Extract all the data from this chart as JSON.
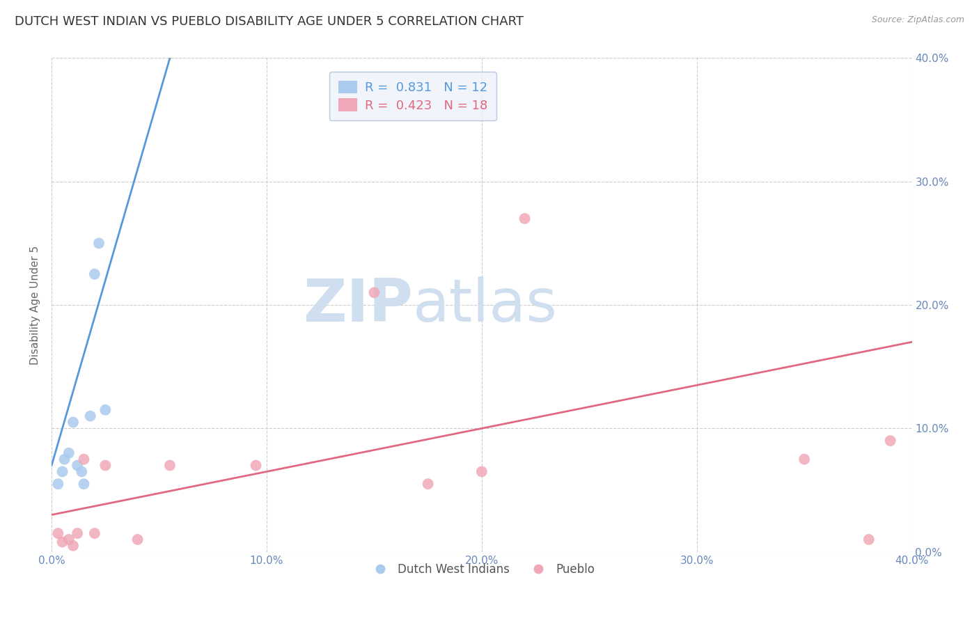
{
  "title": "DUTCH WEST INDIAN VS PUEBLO DISABILITY AGE UNDER 5 CORRELATION CHART",
  "source": "Source: ZipAtlas.com",
  "ylabel": "Disability Age Under 5",
  "ytick_values": [
    0,
    10,
    20,
    30,
    40
  ],
  "xtick_values": [
    0,
    10,
    20,
    30,
    40
  ],
  "xmin": 0,
  "xmax": 40,
  "ymin": 0,
  "ymax": 40,
  "legend_box_color": "#eef2fa",
  "legend_border_color": "#aabbdd",
  "blue_R": "0.831",
  "blue_N": "12",
  "pink_R": "0.423",
  "pink_N": "18",
  "blue_color": "#aacbee",
  "pink_color": "#f0a8b8",
  "blue_line_color": "#5599dd",
  "pink_line_color": "#e06880",
  "watermark_zip": "ZIP",
  "watermark_atlas": "atlas",
  "watermark_color": "#d0dff0",
  "grid_color": "#cccccc",
  "grid_style": "--",
  "tick_label_color": "#6688bb",
  "title_color": "#333333",
  "blue_points_x": [
    0.3,
    0.5,
    0.6,
    0.8,
    1.0,
    1.2,
    1.4,
    1.5,
    1.8,
    2.0,
    2.2,
    2.5
  ],
  "blue_points_y": [
    5.5,
    6.5,
    7.5,
    8.0,
    10.5,
    7.0,
    6.5,
    5.5,
    11.0,
    22.5,
    25.0,
    11.5
  ],
  "pink_points_x": [
    0.3,
    0.5,
    0.8,
    1.0,
    1.2,
    1.5,
    2.0,
    2.5,
    4.0,
    5.5,
    15.0,
    17.5,
    20.0,
    22.0,
    35.0,
    38.0,
    39.0,
    9.5
  ],
  "pink_points_y": [
    1.5,
    0.8,
    1.0,
    0.5,
    1.5,
    7.5,
    1.5,
    7.0,
    1.0,
    7.0,
    21.0,
    5.5,
    6.5,
    27.0,
    7.5,
    1.0,
    9.0,
    7.0
  ],
  "blue_line_x": [
    0,
    5.5
  ],
  "blue_line_y": [
    7.0,
    40.0
  ],
  "pink_line_x": [
    0,
    40
  ],
  "pink_line_y": [
    3.0,
    17.0
  ],
  "figwidth": 14.06,
  "figheight": 8.92,
  "marker_size": 130
}
